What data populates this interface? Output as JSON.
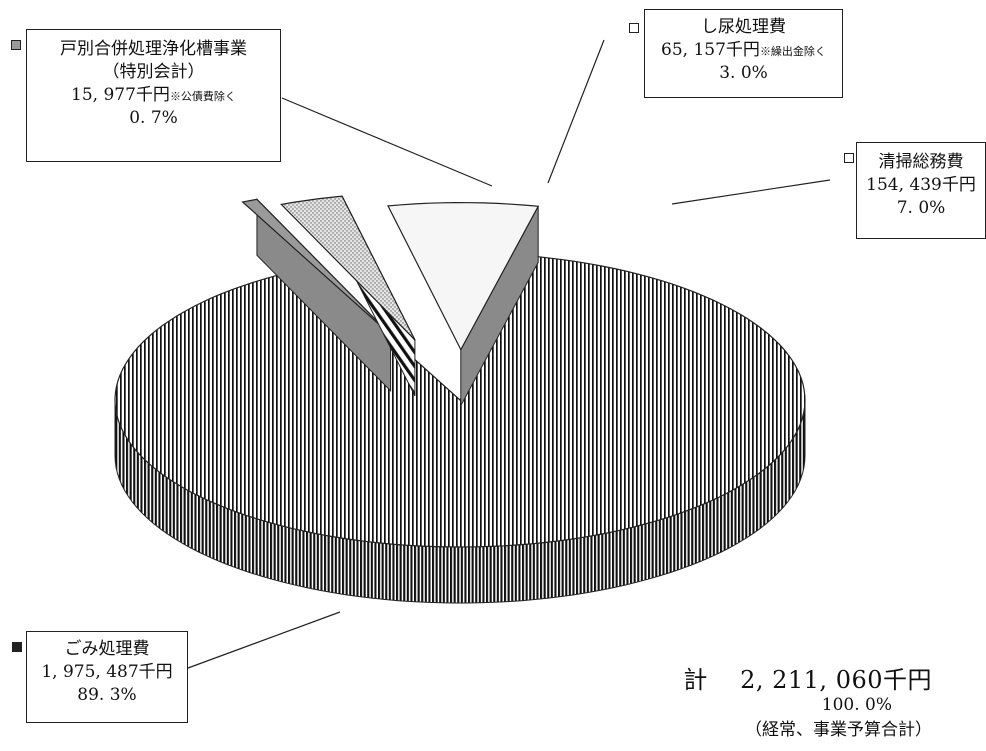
{
  "chart_data": {
    "type": "pie",
    "style": "3d-exploded",
    "slices": [
      {
        "name": "ごみ処理費",
        "amount_label": "1, 975, 487千円",
        "note": "",
        "value": 1975487,
        "percent_label": "89. 3%",
        "pattern": "vertical-lines"
      },
      {
        "name_lines": [
          "戸別合併処理浄化槽事業",
          "（特別会計）"
        ],
        "amount_label": "15, 977千円",
        "note": "※公債費除く",
        "value": 15977,
        "percent_label": "0. 7%",
        "pattern": "gray-solid"
      },
      {
        "name": "し尿処理費",
        "amount_label": "65, 157千円",
        "note": "※繰出金除く",
        "value": 65157,
        "percent_label": "3. 0%",
        "pattern": "dots-and-diagonals"
      },
      {
        "name": "清掃総務費",
        "amount_label": "154, 439千円",
        "note": "",
        "value": 154439,
        "percent_label": "7. 0%",
        "pattern": "white-solid"
      }
    ],
    "total": {
      "label": "計",
      "amount_label": "2, 211, 060千円",
      "percent_label": "100. 0%",
      "note": "（経常、事業予算合計）"
    }
  },
  "colors": {
    "outline": "#222222",
    "gray_slice": "#9a9a9a",
    "gray_side": "#8a8a8a",
    "white_slice": "#f6f6f6",
    "dot_fill": "#d8d8d8"
  }
}
